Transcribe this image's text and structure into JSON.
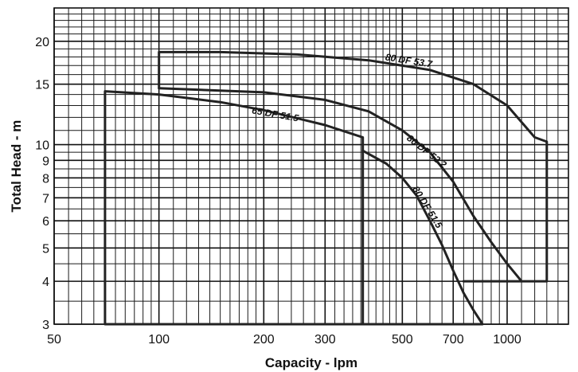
{
  "chart_data": {
    "type": "line",
    "title": "",
    "xlabel": "Capacity - lpm",
    "ylabel": "Total Head - m",
    "xscale": "log",
    "yscale": "log",
    "xlim": [
      50,
      1500
    ],
    "ylim": [
      3,
      25
    ],
    "grid": true,
    "xticks": [
      {
        "value": 50,
        "label": "50"
      },
      {
        "value": 100,
        "label": "100"
      },
      {
        "value": 200,
        "label": "200"
      },
      {
        "value": 300,
        "label": "300"
      },
      {
        "value": 500,
        "label": "500"
      },
      {
        "value": 700,
        "label": "700"
      },
      {
        "value": 1000,
        "label": "1000"
      }
    ],
    "yticks": [
      {
        "value": 3,
        "label": "3"
      },
      {
        "value": 4,
        "label": "4"
      },
      {
        "value": 5,
        "label": "5"
      },
      {
        "value": 6,
        "label": "6"
      },
      {
        "value": 7,
        "label": "7"
      },
      {
        "value": 8,
        "label": "8"
      },
      {
        "value": 9,
        "label": "9"
      },
      {
        "value": 10,
        "label": "10"
      },
      {
        "value": 15,
        "label": "15"
      },
      {
        "value": 20,
        "label": "20"
      }
    ],
    "series": [
      {
        "name": "80 DF 53.7",
        "label_at": {
          "x": 520,
          "y": 17.2,
          "angle": 9
        },
        "points": [
          [
            100,
            14.6
          ],
          [
            100,
            18.6
          ],
          [
            150,
            18.6
          ],
          [
            250,
            18.3
          ],
          [
            400,
            17.6
          ],
          [
            600,
            16.5
          ],
          [
            800,
            15.0
          ],
          [
            1000,
            13.0
          ],
          [
            1200,
            10.5
          ],
          [
            1300,
            10.2
          ],
          [
            1300,
            4.0
          ],
          [
            750,
            4.0
          ]
        ]
      },
      {
        "name": "80 DF 52.2",
        "label_at": {
          "x": 580,
          "y": 9.4,
          "angle": 38
        },
        "points": [
          [
            100,
            14.6
          ],
          [
            200,
            14.2
          ],
          [
            300,
            13.5
          ],
          [
            400,
            12.5
          ],
          [
            500,
            11.0
          ],
          [
            600,
            9.5
          ],
          [
            700,
            7.8
          ],
          [
            800,
            6.2
          ],
          [
            900,
            5.2
          ],
          [
            1000,
            4.5
          ],
          [
            1100,
            4.0
          ]
        ]
      },
      {
        "name": "65 DF 51.5",
        "label_at": {
          "x": 215,
          "y": 12.0,
          "angle": 10
        },
        "points": [
          [
            70,
            3.0
          ],
          [
            70,
            14.3
          ],
          [
            100,
            14.0
          ],
          [
            150,
            13.3
          ],
          [
            200,
            12.6
          ],
          [
            300,
            11.4
          ],
          [
            385,
            10.5
          ],
          [
            385,
            3.0
          ],
          [
            70,
            3.0
          ]
        ]
      },
      {
        "name": "80 DF 51.5",
        "label_at": {
          "x": 580,
          "y": 6.5,
          "angle": 58
        },
        "points": [
          [
            385,
            9.6
          ],
          [
            450,
            8.8
          ],
          [
            500,
            8.0
          ],
          [
            550,
            7.1
          ],
          [
            600,
            6.0
          ],
          [
            650,
            5.1
          ],
          [
            700,
            4.3
          ],
          [
            750,
            3.7
          ],
          [
            800,
            3.3
          ],
          [
            850,
            3.0
          ],
          [
            385,
            3.0
          ]
        ]
      }
    ]
  }
}
